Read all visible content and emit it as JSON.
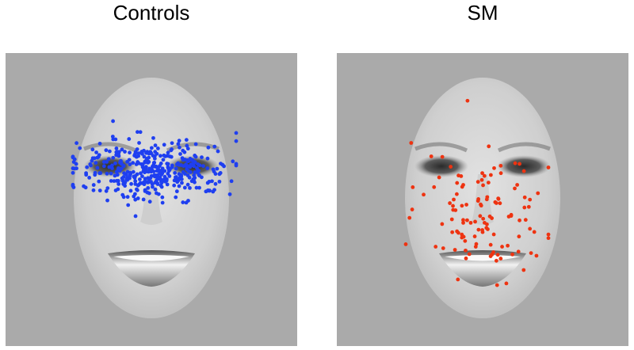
{
  "panels": [
    {
      "title": "Controls"
    },
    {
      "title": "SM"
    }
  ]
}
